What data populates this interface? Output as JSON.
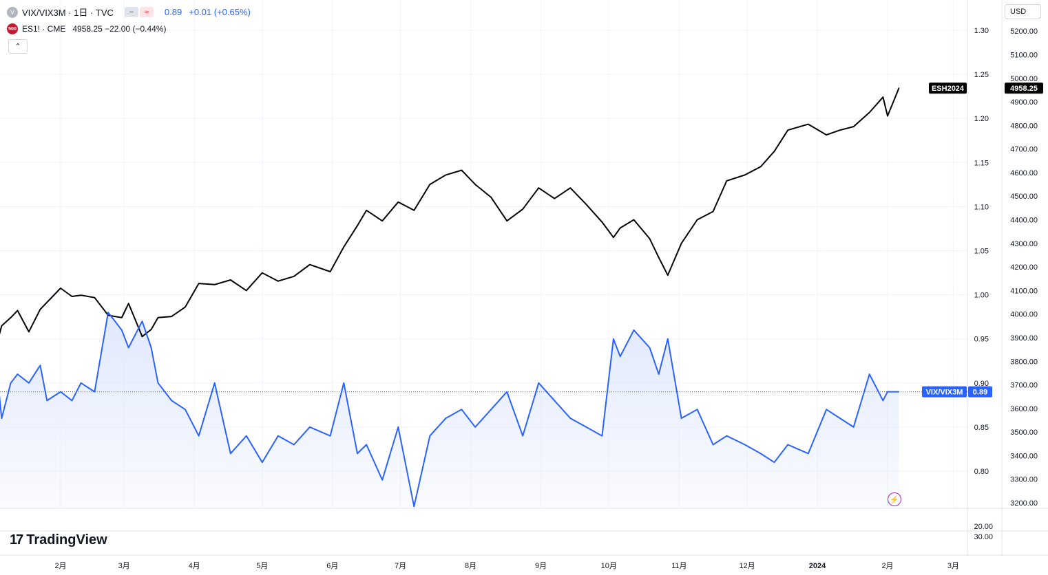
{
  "header": {
    "vix_symbol": "VIX/VIX3M · 1日 · TVC",
    "vix_value": "0.89",
    "vix_change": "+0.01 (+0.65%)",
    "es_icon_text": "500",
    "es_label": "ES1! · CME",
    "es_values": "4958.25 −22.00 (−0.44%)",
    "currency": "USD",
    "logo_text": "TradingView"
  },
  "colors": {
    "es_line": "#000000",
    "vix_line": "#2962ff",
    "vix_fill": "#dde6fc",
    "grid": "#f0f3fa",
    "axis_text": "#131722"
  },
  "chart_data": {
    "type": "line",
    "x": [
      "2023-01-04",
      "2023-01-06",
      "2023-01-10",
      "2023-01-13",
      "2023-01-18",
      "2023-01-23",
      "2023-01-26",
      "2023-02-01",
      "2023-02-06",
      "2023-02-10",
      "2023-02-16",
      "2023-02-22",
      "2023-02-28",
      "2023-03-03",
      "2023-03-09",
      "2023-03-13",
      "2023-03-16",
      "2023-03-22",
      "2023-03-28",
      "2023-04-03",
      "2023-04-10",
      "2023-04-17",
      "2023-04-24",
      "2023-05-01",
      "2023-05-08",
      "2023-05-15",
      "2023-05-22",
      "2023-05-31",
      "2023-06-06",
      "2023-06-12",
      "2023-06-16",
      "2023-06-23",
      "2023-06-30",
      "2023-07-07",
      "2023-07-14",
      "2023-07-21",
      "2023-07-28",
      "2023-08-03",
      "2023-08-10",
      "2023-08-17",
      "2023-08-24",
      "2023-08-31",
      "2023-09-07",
      "2023-09-14",
      "2023-09-21",
      "2023-09-28",
      "2023-10-03",
      "2023-10-06",
      "2023-10-12",
      "2023-10-19",
      "2023-10-23",
      "2023-10-27",
      "2023-11-02",
      "2023-11-09",
      "2023-11-16",
      "2023-11-22",
      "2023-11-30",
      "2023-12-07",
      "2023-12-13",
      "2023-12-19",
      "2023-12-28",
      "2024-01-05",
      "2024-01-11",
      "2024-01-17",
      "2024-01-24",
      "2024-01-30",
      "2024-02-01",
      "2024-02-06"
    ],
    "series": [
      {
        "name": "ES1!",
        "axis": "right",
        "values": [
          3880,
          3950,
          3985,
          4015,
          3925,
          4020,
          4050,
          4110,
          4075,
          4080,
          4070,
          3995,
          3985,
          4045,
          3905,
          3935,
          3985,
          3990,
          4030,
          4130,
          4125,
          4145,
          4100,
          4175,
          4140,
          4160,
          4210,
          4180,
          4285,
          4375,
          4440,
          4395,
          4475,
          4440,
          4550,
          4590,
          4610,
          4550,
          4495,
          4395,
          4445,
          4535,
          4490,
          4535,
          4465,
          4390,
          4325,
          4365,
          4400,
          4320,
          4240,
          4165,
          4300,
          4400,
          4435,
          4565,
          4590,
          4625,
          4690,
          4780,
          4805,
          4760,
          4780,
          4795,
          4855,
          4920,
          4840,
          4958.25
        ]
      },
      {
        "name": "VIX/VIX3M",
        "axis": "left",
        "values": [
          0.91,
          0.86,
          0.9,
          0.91,
          0.9,
          0.92,
          0.88,
          0.89,
          0.88,
          0.9,
          0.89,
          0.98,
          0.96,
          0.94,
          0.97,
          0.94,
          0.9,
          0.88,
          0.87,
          0.84,
          0.9,
          0.82,
          0.84,
          0.81,
          0.84,
          0.83,
          0.85,
          0.84,
          0.9,
          0.82,
          0.83,
          0.79,
          0.85,
          0.76,
          0.84,
          0.86,
          0.87,
          0.85,
          0.87,
          0.89,
          0.84,
          0.9,
          0.88,
          0.86,
          0.85,
          0.84,
          0.95,
          0.93,
          0.96,
          0.94,
          0.91,
          0.95,
          0.86,
          0.87,
          0.83,
          0.84,
          0.83,
          0.82,
          0.81,
          0.83,
          0.82,
          0.87,
          0.86,
          0.85,
          0.91,
          0.88,
          0.89,
          0.89
        ]
      }
    ],
    "left_axis": {
      "ticks": [
        "0.80",
        "0.85",
        "0.90",
        "0.95",
        "1.00",
        "1.05",
        "1.10",
        "1.15",
        "1.20",
        "1.25",
        "1.30"
      ]
    },
    "right_axis": {
      "ticks": [
        "3200.00",
        "3300.00",
        "3400.00",
        "3500.00",
        "3600.00",
        "3700.00",
        "3800.00",
        "3900.00",
        "4000.00",
        "4100.00",
        "4200.00",
        "4300.00",
        "4400.00",
        "4500.00",
        "4600.00",
        "4700.00",
        "4800.00",
        "4900.00",
        "5000.00",
        "5100.00",
        "5200.00"
      ]
    },
    "lower_pane_ticks": [
      "20.00",
      "30.00"
    ],
    "x_ticks": [
      "2月",
      "3月",
      "4月",
      "5月",
      "6月",
      "7月",
      "8月",
      "9月",
      "10月",
      "11月",
      "12月",
      "2024",
      "2月",
      "3月"
    ],
    "labels": {
      "es_tag": "ESH2024",
      "es_price": "4958.25",
      "vix_tag": "VIX/VIX3M",
      "vix_price": "0.89"
    }
  }
}
